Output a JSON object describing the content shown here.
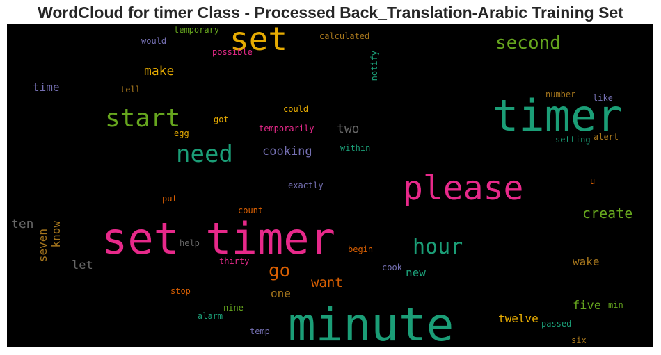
{
  "chart_data": {
    "type": "wordcloud",
    "title": "WordCloud for timer Class - Processed Back_Translation-Arabic Training Set",
    "words": [
      {
        "text": "set timer",
        "color": "#e7298a"
      },
      {
        "text": "minute",
        "color": "#1b9e77"
      },
      {
        "text": "timer",
        "color": "#1b9e77"
      },
      {
        "text": "please",
        "color": "#e7298a"
      },
      {
        "text": "set",
        "color": "#e6ab02"
      },
      {
        "text": "start",
        "color": "#66a61e"
      },
      {
        "text": "need",
        "color": "#1b9e77"
      },
      {
        "text": "hour",
        "color": "#1b9e77"
      },
      {
        "text": "second",
        "color": "#66a61e"
      },
      {
        "text": "go",
        "color": "#d95f02"
      },
      {
        "text": "create",
        "color": "#66a61e"
      },
      {
        "text": "want",
        "color": "#d95f02"
      },
      {
        "text": "make",
        "color": "#e6ab02"
      },
      {
        "text": "cooking",
        "color": "#7570b3"
      },
      {
        "text": "two",
        "color": "#666666"
      },
      {
        "text": "ten",
        "color": "#666666"
      },
      {
        "text": "time",
        "color": "#7570b3"
      },
      {
        "text": "let",
        "color": "#666666"
      },
      {
        "text": "five",
        "color": "#66a61e"
      },
      {
        "text": "twelve",
        "color": "#e6ab02"
      },
      {
        "text": "wake",
        "color": "#a6761d"
      },
      {
        "text": "one",
        "color": "#a6761d"
      },
      {
        "text": "new",
        "color": "#1b9e77"
      },
      {
        "text": "seven",
        "color": "#a6761d"
      },
      {
        "text": "know",
        "color": "#a6761d"
      },
      {
        "text": "could",
        "color": "#e6ab02"
      },
      {
        "text": "got",
        "color": "#e6ab02"
      },
      {
        "text": "egg",
        "color": "#e6ab02"
      },
      {
        "text": "temporarily",
        "color": "#e7298a"
      },
      {
        "text": "within",
        "color": "#1b9e77"
      },
      {
        "text": "exactly",
        "color": "#7570b3"
      },
      {
        "text": "tell",
        "color": "#a6761d"
      },
      {
        "text": "would",
        "color": "#7570b3"
      },
      {
        "text": "temporary",
        "color": "#66a61e"
      },
      {
        "text": "possible",
        "color": "#e7298a"
      },
      {
        "text": "calculated",
        "color": "#a6761d"
      },
      {
        "text": "notify",
        "color": "#1b9e77"
      },
      {
        "text": "number",
        "color": "#a6761d"
      },
      {
        "text": "like",
        "color": "#7570b3"
      },
      {
        "text": "setting",
        "color": "#1b9e77"
      },
      {
        "text": "alert",
        "color": "#a6761d"
      },
      {
        "text": "u",
        "color": "#d95f02"
      },
      {
        "text": "put",
        "color": "#d95f02"
      },
      {
        "text": "count",
        "color": "#d95f02"
      },
      {
        "text": "help",
        "color": "#666666"
      },
      {
        "text": "thirty",
        "color": "#e7298a"
      },
      {
        "text": "begin",
        "color": "#d95f02"
      },
      {
        "text": "cook",
        "color": "#7570b3"
      },
      {
        "text": "stop",
        "color": "#d95f02"
      },
      {
        "text": "nine",
        "color": "#66a61e"
      },
      {
        "text": "alarm",
        "color": "#1b9e77"
      },
      {
        "text": "temp",
        "color": "#7570b3"
      },
      {
        "text": "min",
        "color": "#66a61e"
      },
      {
        "text": "passed",
        "color": "#1b9e77"
      },
      {
        "text": "six",
        "color": "#a6761d"
      }
    ]
  }
}
